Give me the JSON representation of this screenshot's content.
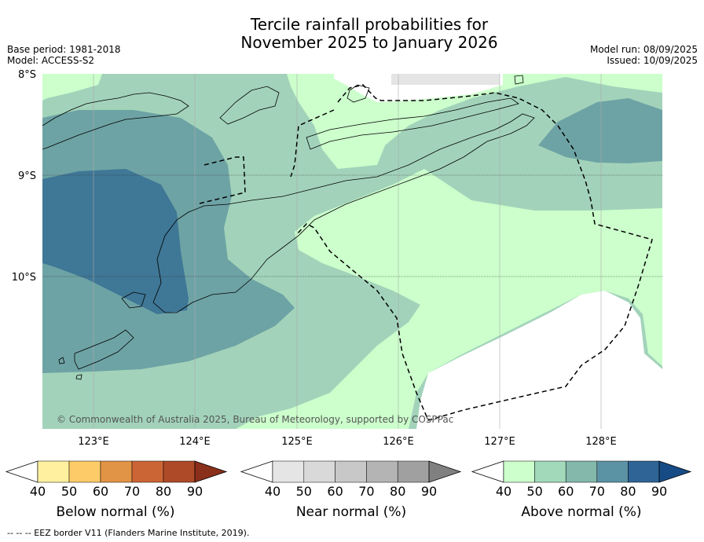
{
  "title_line1": "Tercile rainfall probabilities for",
  "title_line2": "November 2025 to January 2026",
  "meta_left": {
    "base_period": "Base period: 1981-2018",
    "model": "Model: ACCESS-S2"
  },
  "meta_right": {
    "model_run": "Model run: 08/09/2025",
    "issued": "Issued: 10/09/2025"
  },
  "map": {
    "lat_labels": [
      "8°S",
      "9°S",
      "10°S"
    ],
    "lon_labels": [
      "123°E",
      "124°E",
      "125°E",
      "126°E",
      "127°E",
      "128°E"
    ],
    "copyright": "© Commonwealth of Australia 2025, Bureau of Meteorology, supported by COSPPac"
  },
  "colorbars": [
    {
      "name": "below",
      "title": "Below normal (%)",
      "ticks": [
        "40",
        "50",
        "60",
        "70",
        "80",
        "90"
      ],
      "colors": [
        "#ffffff",
        "#fff0a0",
        "#fdcb68",
        "#e29446",
        "#cc6535",
        "#ae4a27",
        "#8a2f1a"
      ]
    },
    {
      "name": "near",
      "title": "Near normal (%)",
      "ticks": [
        "40",
        "50",
        "60",
        "70",
        "80",
        "90"
      ],
      "colors": [
        "#ffffff",
        "#e5e5e5",
        "#d9d9d9",
        "#c8c8c8",
        "#b4b4b4",
        "#a0a0a0",
        "#808080"
      ]
    },
    {
      "name": "above",
      "title": "Above normal (%)",
      "ticks": [
        "40",
        "50",
        "60",
        "70",
        "80",
        "90"
      ],
      "colors": [
        "#ffffff",
        "#ccffcc",
        "#a2d9bb",
        "#83b8ab",
        "#5b92a4",
        "#2e6496",
        "#174b85"
      ]
    }
  ],
  "footnote": "--  --  -- EEZ border V11 (Flanders Marine Institute, 2019)."
}
